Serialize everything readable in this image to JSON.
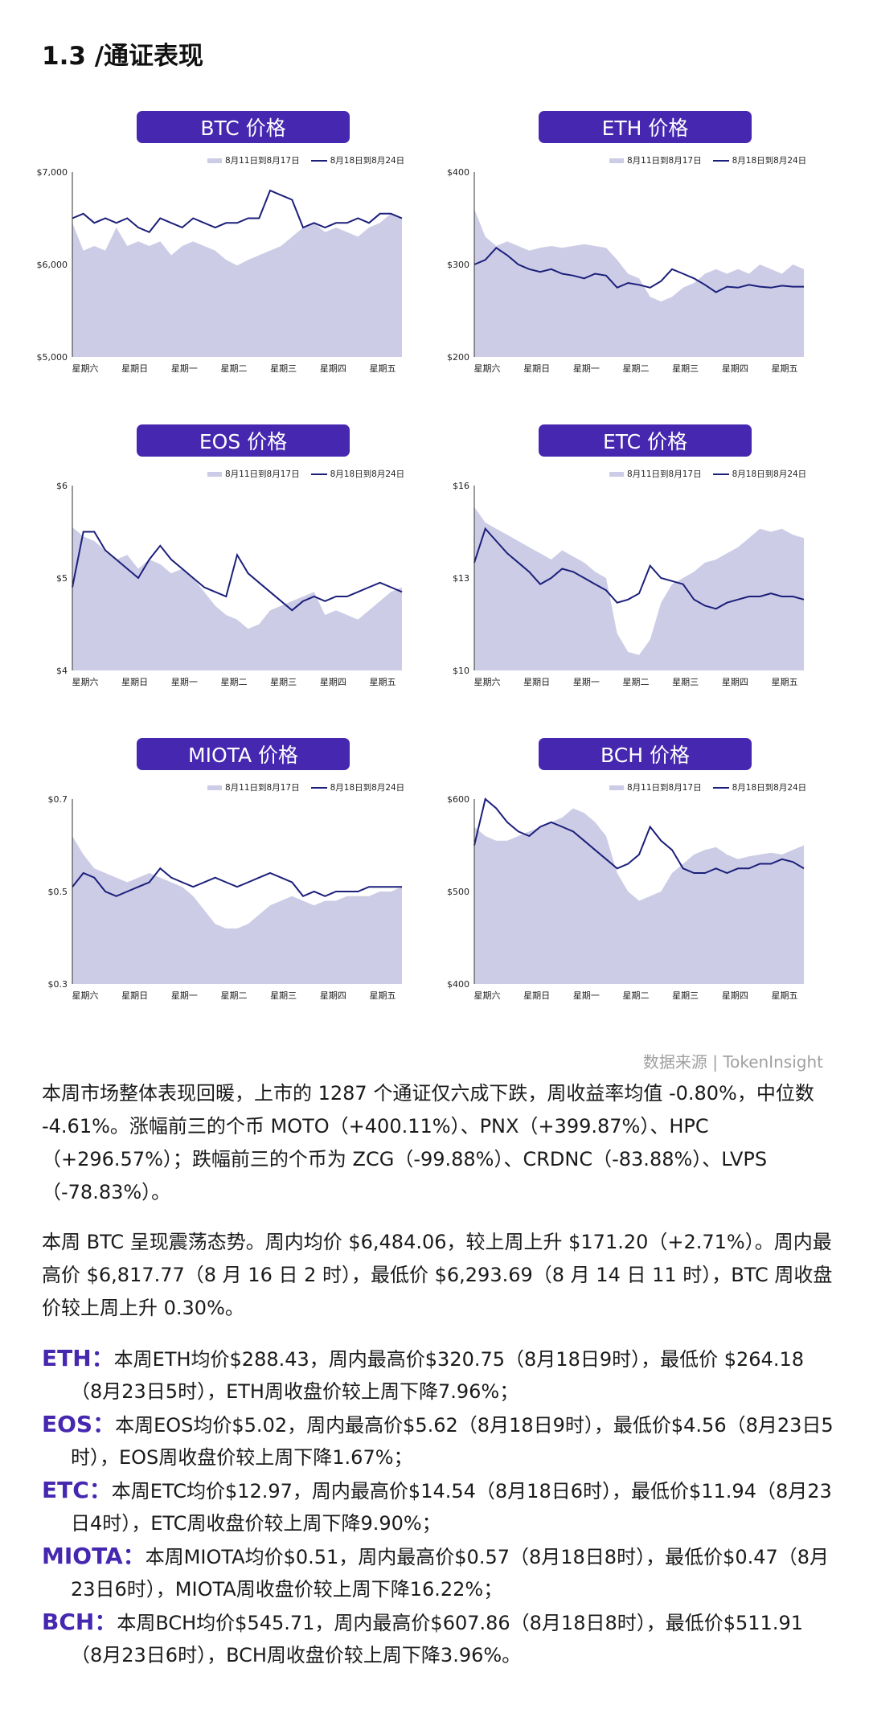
{
  "section_title": "1.3 /通证表现",
  "legend": {
    "prev": "8月11日到8月17日",
    "curr": "8月18日到8月24日"
  },
  "weekdays": [
    "星期六",
    "星期日",
    "星期一",
    "星期二",
    "星期三",
    "星期四",
    "星期五"
  ],
  "chart_data": [
    {
      "type": "area",
      "title": "BTC 价格",
      "ylim": [
        5000,
        7000
      ],
      "ytick_labels": [
        "$7,000",
        "$6,000",
        "$5,000"
      ],
      "ytick_values": [
        7000,
        6000,
        5000
      ],
      "series": [
        {
          "name": "8月11日到8月17日",
          "kind": "area",
          "color": "#cccce6",
          "values": [
            6450,
            6150,
            6200,
            6150,
            6400,
            6200,
            6250,
            6200,
            6250,
            6100,
            6200,
            6250,
            6200,
            6150,
            6050,
            5990,
            6050,
            6100,
            6150,
            6200,
            6300,
            6400,
            6450,
            6350,
            6400,
            6350,
            6300,
            6400,
            6450,
            6550,
            6500
          ]
        },
        {
          "name": "8月18日到8月24日",
          "kind": "line",
          "color": "#1b1f7a",
          "values": [
            6500,
            6550,
            6450,
            6500,
            6450,
            6500,
            6400,
            6350,
            6500,
            6450,
            6400,
            6500,
            6450,
            6400,
            6450,
            6450,
            6500,
            6500,
            6800,
            6750,
            6700,
            6400,
            6450,
            6400,
            6450,
            6450,
            6500,
            6450,
            6550,
            6550,
            6500
          ]
        }
      ]
    },
    {
      "type": "area",
      "title": "ETH 价格",
      "ylim": [
        200,
        400
      ],
      "ytick_labels": [
        "$400",
        "$300",
        "$200"
      ],
      "ytick_values": [
        400,
        300,
        200
      ],
      "series": [
        {
          "name": "8月11日到8月17日",
          "kind": "area",
          "color": "#cccce6",
          "values": [
            360,
            330,
            320,
            325,
            320,
            315,
            318,
            320,
            318,
            320,
            322,
            320,
            318,
            305,
            290,
            285,
            265,
            260,
            265,
            275,
            280,
            290,
            295,
            290,
            295,
            290,
            300,
            295,
            290,
            300,
            295
          ]
        },
        {
          "name": "8月18日到8月24日",
          "kind": "line",
          "color": "#1b1f7a",
          "values": [
            300,
            305,
            318,
            310,
            300,
            295,
            292,
            295,
            290,
            288,
            285,
            290,
            288,
            275,
            280,
            278,
            275,
            282,
            295,
            290,
            285,
            278,
            270,
            276,
            275,
            278,
            276,
            275,
            277,
            276,
            276
          ]
        }
      ]
    },
    {
      "type": "area",
      "title": "EOS 价格",
      "ylim": [
        4,
        6
      ],
      "ytick_labels": [
        "$6",
        "$5",
        "$4"
      ],
      "ytick_values": [
        6,
        5,
        4
      ],
      "series": [
        {
          "name": "8月11日到8月17日",
          "kind": "area",
          "color": "#cccce6",
          "values": [
            5.55,
            5.45,
            5.4,
            5.3,
            5.2,
            5.25,
            5.1,
            5.2,
            5.15,
            5.05,
            5.1,
            5.0,
            4.85,
            4.7,
            4.6,
            4.55,
            4.45,
            4.5,
            4.65,
            4.7,
            4.75,
            4.8,
            4.85,
            4.6,
            4.65,
            4.6,
            4.55,
            4.65,
            4.75,
            4.85,
            4.9
          ]
        },
        {
          "name": "8月18日到8月24日",
          "kind": "line",
          "color": "#1b1f7a",
          "values": [
            4.9,
            5.5,
            5.5,
            5.3,
            5.2,
            5.1,
            5.0,
            5.2,
            5.35,
            5.2,
            5.1,
            5.0,
            4.9,
            4.85,
            4.8,
            5.25,
            5.05,
            4.95,
            4.85,
            4.75,
            4.65,
            4.75,
            4.8,
            4.75,
            4.8,
            4.8,
            4.85,
            4.9,
            4.95,
            4.9,
            4.85
          ]
        }
      ]
    },
    {
      "type": "area",
      "title": "ETC 价格",
      "ylim": [
        10,
        16
      ],
      "ytick_labels": [
        "$16",
        "$13",
        "$10"
      ],
      "ytick_values": [
        16,
        13,
        10
      ],
      "series": [
        {
          "name": "8月11日到8月17日",
          "kind": "area",
          "color": "#cccce6",
          "values": [
            15.3,
            14.8,
            14.6,
            14.4,
            14.2,
            14.0,
            13.8,
            13.6,
            13.9,
            13.7,
            13.5,
            13.2,
            13.0,
            11.2,
            10.6,
            10.5,
            11.0,
            12.2,
            12.8,
            13.0,
            13.2,
            13.5,
            13.6,
            13.8,
            14.0,
            14.3,
            14.6,
            14.5,
            14.6,
            14.4,
            14.3
          ]
        },
        {
          "name": "8月18日到8月24日",
          "kind": "line",
          "color": "#1b1f7a",
          "values": [
            13.5,
            14.6,
            14.2,
            13.8,
            13.5,
            13.2,
            12.8,
            13.0,
            13.3,
            13.2,
            13.0,
            12.8,
            12.6,
            12.2,
            12.3,
            12.5,
            13.4,
            13.0,
            12.9,
            12.8,
            12.3,
            12.1,
            12.0,
            12.2,
            12.3,
            12.4,
            12.4,
            12.5,
            12.4,
            12.4,
            12.3
          ]
        }
      ]
    },
    {
      "type": "area",
      "title": "MIOTA 价格",
      "ylim": [
        0.3,
        0.7
      ],
      "ytick_labels": [
        "$0.7",
        "$0.5",
        "$0.3"
      ],
      "ytick_values": [
        0.7,
        0.5,
        0.3
      ],
      "series": [
        {
          "name": "8月11日到8月17日",
          "kind": "area",
          "color": "#cccce6",
          "values": [
            0.62,
            0.58,
            0.55,
            0.54,
            0.53,
            0.52,
            0.53,
            0.54,
            0.53,
            0.52,
            0.51,
            0.49,
            0.46,
            0.43,
            0.42,
            0.42,
            0.43,
            0.45,
            0.47,
            0.48,
            0.49,
            0.48,
            0.47,
            0.48,
            0.48,
            0.49,
            0.49,
            0.49,
            0.5,
            0.5,
            0.51
          ]
        },
        {
          "name": "8月18日到8月24日",
          "kind": "line",
          "color": "#1b1f7a",
          "values": [
            0.51,
            0.54,
            0.53,
            0.5,
            0.49,
            0.5,
            0.51,
            0.52,
            0.55,
            0.53,
            0.52,
            0.51,
            0.52,
            0.53,
            0.52,
            0.51,
            0.52,
            0.53,
            0.54,
            0.53,
            0.52,
            0.49,
            0.5,
            0.49,
            0.5,
            0.5,
            0.5,
            0.51,
            0.51,
            0.51,
            0.51
          ]
        }
      ]
    },
    {
      "type": "area",
      "title": "BCH 价格",
      "ylim": [
        400,
        600
      ],
      "ytick_labels": [
        "$600",
        "$500",
        "$400"
      ],
      "ytick_values": [
        600,
        500,
        400
      ],
      "series": [
        {
          "name": "8月11日到8月17日",
          "kind": "area",
          "color": "#cccce6",
          "values": [
            570,
            560,
            555,
            555,
            560,
            565,
            570,
            575,
            580,
            590,
            585,
            575,
            560,
            520,
            500,
            490,
            495,
            500,
            520,
            530,
            540,
            545,
            548,
            540,
            535,
            538,
            540,
            542,
            540,
            545,
            550
          ]
        },
        {
          "name": "8月18日到8月24日",
          "kind": "line",
          "color": "#1b1f7a",
          "values": [
            550,
            600,
            590,
            575,
            565,
            560,
            570,
            575,
            570,
            565,
            555,
            545,
            535,
            525,
            530,
            540,
            570,
            555,
            545,
            525,
            520,
            520,
            525,
            520,
            525,
            525,
            530,
            530,
            535,
            532,
            525
          ]
        }
      ]
    }
  ],
  "source": "数据来源 | TokenInsight",
  "paragraphs": [
    "本周市场整体表现回暖，上市的 1287 个通证仅六成下跌，周收益率均值 -0.80%，中位数 -4.61%。涨幅前三的个币 MOTO（+400.11%）、PNX（+399.87%）、HPC（+296.57%）；跌幅前三的个币为 ZCG（-99.88%）、CRDNC（-83.88%）、LVPS（-78.83%）。",
    "本周 BTC 呈现震荡态势。周内均价 $6,484.06，较上周上升 $171.20（+2.71%）。周内最高价 $6,817.77（8 月 16 日 2 时），最低价 $6,293.69（8 月 14 日 11 时），BTC 周收盘价较上周上升 0.30%。"
  ],
  "coins": [
    {
      "name": "ETH：",
      "text": "本周ETH均价$288.43，周内最高价$320.75（8月18日9时），最低价 $264.18（8月23日5时），ETH周收盘价较上周下降7.96%；"
    },
    {
      "name": "EOS：",
      "text": "本周EOS均价$5.02，周内最高价$5.62（8月18日9时），最低价$4.56（8月23日5时），EOS周收盘价较上周下降1.67%；"
    },
    {
      "name": "ETC：",
      "text": "本周ETC均价$12.97，周内最高价$14.54（8月18日6时），最低价$11.94（8月23日4时），ETC周收盘价较上周下降9.90%；"
    },
    {
      "name": "MIOTA：",
      "text": "本周MIOTA均价$0.51，周内最高价$0.57（8月18日8时），最低价$0.47（8月23日6时），MIOTA周收盘价较上周下降16.22%；"
    },
    {
      "name": "BCH：",
      "text": "本周BCH均价$545.71，周内最高价$607.86（8月18日8时），最低价$511.91（8月23日6时），BCH周收盘价较上周下降3.96%。"
    }
  ]
}
